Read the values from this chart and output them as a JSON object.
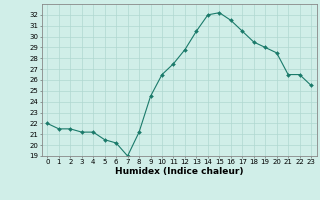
{
  "x": [
    0,
    1,
    2,
    3,
    4,
    5,
    6,
    7,
    8,
    9,
    10,
    11,
    12,
    13,
    14,
    15,
    16,
    17,
    18,
    19,
    20,
    21,
    22,
    23
  ],
  "y": [
    22.0,
    21.5,
    21.5,
    21.2,
    21.2,
    20.5,
    20.2,
    19.0,
    21.2,
    24.5,
    26.5,
    27.5,
    28.8,
    30.5,
    32.0,
    32.2,
    31.5,
    30.5,
    29.5,
    29.0,
    28.5,
    26.5,
    26.5,
    25.5
  ],
  "line_color": "#1a7a6a",
  "marker": "D",
  "marker_size": 2,
  "bg_color": "#d0eee8",
  "grid_color": "#b0d8d0",
  "xlabel": "Humidex (Indice chaleur)",
  "ylim": [
    19,
    33
  ],
  "xlim": [
    -0.5,
    23.5
  ],
  "yticks": [
    19,
    20,
    21,
    22,
    23,
    24,
    25,
    26,
    27,
    28,
    29,
    30,
    31,
    32
  ],
  "xticks": [
    0,
    1,
    2,
    3,
    4,
    5,
    6,
    7,
    8,
    9,
    10,
    11,
    12,
    13,
    14,
    15,
    16,
    17,
    18,
    19,
    20,
    21,
    22,
    23
  ],
  "tick_fontsize": 5,
  "xlabel_fontsize": 6.5
}
